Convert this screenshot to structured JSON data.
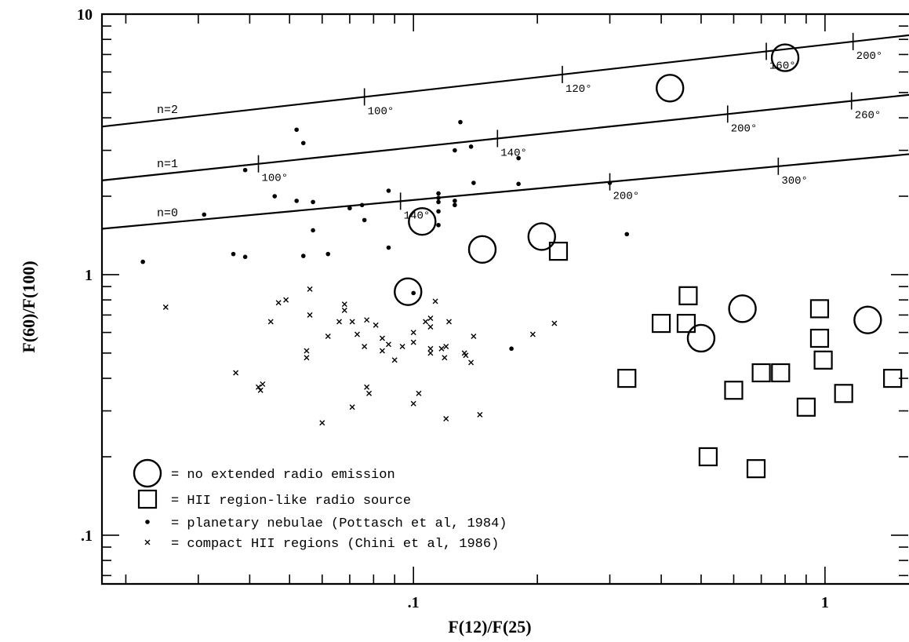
{
  "chart_data": {
    "type": "scatter",
    "title": "",
    "xlabel": "F(12)/F(25)",
    "ylabel": "F(60)/F(100)",
    "xscale": "log",
    "yscale": "log",
    "xlim": [
      0.0175,
      1.6
    ],
    "ylim": [
      0.065,
      10
    ],
    "x_tick_labels": [
      {
        "value": 0.1,
        "label": ".1"
      },
      {
        "value": 1,
        "label": "1"
      }
    ],
    "y_tick_labels": [
      {
        "value": 0.1,
        "label": ".1"
      },
      {
        "value": 1,
        "label": "1"
      },
      {
        "value": 10,
        "label": "10"
      }
    ],
    "grid": false,
    "legend_position": "bottom-left",
    "lines": [
      {
        "name": "n=2",
        "points": [
          [
            0.0175,
            3.7
          ],
          [
            1.6,
            8.3
          ]
        ],
        "ticks": [
          {
            "x": 0.076,
            "label": "100°"
          },
          {
            "x": 0.23,
            "label": "120°"
          },
          {
            "x": 0.72,
            "label": "160°"
          },
          {
            "x": 1.17,
            "label": "200°"
          }
        ]
      },
      {
        "name": "n=1",
        "points": [
          [
            0.0175,
            2.3
          ],
          [
            1.6,
            4.9
          ]
        ],
        "ticks": [
          {
            "x": 0.042,
            "label": "100°"
          },
          {
            "x": 0.16,
            "label": "140°"
          },
          {
            "x": 0.58,
            "label": "200°"
          },
          {
            "x": 1.16,
            "label": "260°"
          }
        ]
      },
      {
        "name": "n=0",
        "points": [
          [
            0.0175,
            1.5
          ],
          [
            1.6,
            2.9
          ]
        ],
        "ticks": [
          {
            "x": 0.093,
            "label": "140°"
          },
          {
            "x": 0.3,
            "label": "200°"
          },
          {
            "x": 0.77,
            "label": "300°"
          }
        ]
      }
    ],
    "series": [
      {
        "name": "no extended radio emission",
        "marker": "circle",
        "points": [
          [
            0.42,
            5.2
          ],
          [
            0.8,
            6.8
          ],
          [
            0.105,
            1.6
          ],
          [
            0.147,
            1.25
          ],
          [
            0.205,
            1.4
          ],
          [
            0.097,
            0.86
          ],
          [
            0.5,
            0.57
          ],
          [
            0.63,
            0.74
          ],
          [
            1.27,
            0.67
          ]
        ]
      },
      {
        "name": "HII region-like radio source",
        "marker": "square",
        "points": [
          [
            0.225,
            1.23
          ],
          [
            0.465,
            0.83
          ],
          [
            0.4,
            0.65
          ],
          [
            0.46,
            0.65
          ],
          [
            0.33,
            0.4
          ],
          [
            0.52,
            0.2
          ],
          [
            0.6,
            0.36
          ],
          [
            0.68,
            0.18
          ],
          [
            0.7,
            0.42
          ],
          [
            0.78,
            0.42
          ],
          [
            0.9,
            0.31
          ],
          [
            0.97,
            0.74
          ],
          [
            0.97,
            0.57
          ],
          [
            0.99,
            0.47
          ],
          [
            1.11,
            0.35
          ],
          [
            1.46,
            0.4
          ]
        ]
      },
      {
        "name": "planetary nebulae (Pottasch et al, 1984)",
        "marker": "dot",
        "points": [
          [
            0.022,
            1.12
          ],
          [
            0.031,
            1.7
          ],
          [
            0.0365,
            1.2
          ],
          [
            0.039,
            1.17
          ],
          [
            0.039,
            2.52
          ],
          [
            0.046,
            2.0
          ],
          [
            0.052,
            3.6
          ],
          [
            0.054,
            3.2
          ],
          [
            0.052,
            1.92
          ],
          [
            0.054,
            1.18
          ],
          [
            0.057,
            1.48
          ],
          [
            0.057,
            1.9
          ],
          [
            0.062,
            1.2
          ],
          [
            0.07,
            1.8
          ],
          [
            0.075,
            1.85
          ],
          [
            0.087,
            2.1
          ],
          [
            0.087,
            1.27
          ],
          [
            0.076,
            1.62
          ],
          [
            0.1,
            0.85
          ],
          [
            0.115,
            2.05
          ],
          [
            0.115,
            1.97
          ],
          [
            0.115,
            1.9
          ],
          [
            0.115,
            1.75
          ],
          [
            0.115,
            1.55
          ],
          [
            0.126,
            1.85
          ],
          [
            0.126,
            1.92
          ],
          [
            0.126,
            3.0
          ],
          [
            0.13,
            3.85
          ],
          [
            0.138,
            3.1
          ],
          [
            0.14,
            2.25
          ],
          [
            0.18,
            2.23
          ],
          [
            0.18,
            2.8
          ],
          [
            0.173,
            0.52
          ],
          [
            0.3,
            2.25
          ],
          [
            0.33,
            1.43
          ]
        ]
      },
      {
        "name": "compact HII regions (Chini et al, 1986)",
        "marker": "x",
        "points": [
          [
            0.025,
            0.75
          ],
          [
            0.037,
            0.42
          ],
          [
            0.042,
            0.37
          ],
          [
            0.043,
            0.38
          ],
          [
            0.0425,
            0.36
          ],
          [
            0.045,
            0.66
          ],
          [
            0.047,
            0.78
          ],
          [
            0.049,
            0.8
          ],
          [
            0.055,
            0.51
          ],
          [
            0.056,
            0.7
          ],
          [
            0.055,
            0.48
          ],
          [
            0.056,
            0.88
          ],
          [
            0.06,
            0.27
          ],
          [
            0.062,
            0.58
          ],
          [
            0.066,
            0.66
          ],
          [
            0.068,
            0.73
          ],
          [
            0.068,
            0.77
          ],
          [
            0.071,
            0.66
          ],
          [
            0.073,
            0.59
          ],
          [
            0.071,
            0.31
          ],
          [
            0.076,
            0.53
          ],
          [
            0.077,
            0.67
          ],
          [
            0.077,
            0.37
          ],
          [
            0.078,
            0.35
          ],
          [
            0.081,
            0.64
          ],
          [
            0.084,
            0.51
          ],
          [
            0.084,
            0.57
          ],
          [
            0.087,
            0.54
          ],
          [
            0.09,
            0.47
          ],
          [
            0.094,
            0.53
          ],
          [
            0.1,
            0.32
          ],
          [
            0.1,
            0.6
          ],
          [
            0.1,
            0.55
          ],
          [
            0.103,
            0.35
          ],
          [
            0.107,
            0.66
          ],
          [
            0.11,
            0.68
          ],
          [
            0.11,
            0.63
          ],
          [
            0.11,
            0.52
          ],
          [
            0.11,
            0.5
          ],
          [
            0.113,
            0.79
          ],
          [
            0.117,
            0.52
          ],
          [
            0.119,
            0.48
          ],
          [
            0.12,
            0.53
          ],
          [
            0.12,
            0.28
          ],
          [
            0.122,
            0.66
          ],
          [
            0.133,
            0.5
          ],
          [
            0.134,
            0.49
          ],
          [
            0.138,
            0.46
          ],
          [
            0.14,
            0.58
          ],
          [
            0.145,
            0.29
          ],
          [
            0.195,
            0.59
          ],
          [
            0.22,
            0.65
          ]
        ]
      }
    ],
    "legend": [
      {
        "marker": "circle",
        "label": "= no extended radio emission"
      },
      {
        "marker": "square",
        "label": "= HII region-like radio source"
      },
      {
        "marker": "dot",
        "label": "= planetary nebulae (Pottasch et al, 1984)"
      },
      {
        "marker": "x",
        "label": "= compact HII regions (Chini et al, 1986)"
      }
    ]
  }
}
